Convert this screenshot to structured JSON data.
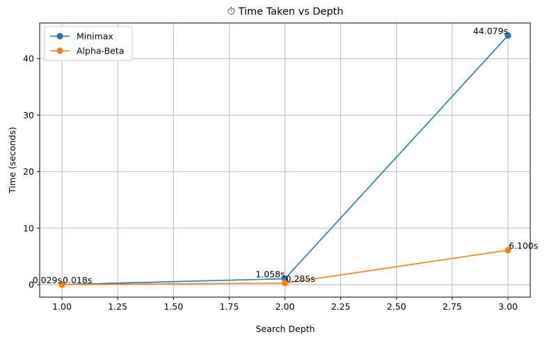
{
  "chart_data": {
    "type": "line",
    "title": "⏱ Time Taken vs Depth",
    "xlabel": "Search Depth",
    "ylabel": "Time (seconds)",
    "xlim": [
      0.9,
      3.1
    ],
    "ylim": [
      -2.2,
      46.3
    ],
    "x_ticks": [
      1.0,
      1.25,
      1.5,
      1.75,
      2.0,
      2.25,
      2.5,
      2.75,
      3.0
    ],
    "x_tick_labels": [
      "1.00",
      "1.25",
      "1.50",
      "1.75",
      "2.00",
      "2.25",
      "2.50",
      "2.75",
      "3.00"
    ],
    "y_ticks": [
      0,
      10,
      20,
      30,
      40
    ],
    "y_tick_labels": [
      "0",
      "10",
      "20",
      "30",
      "40"
    ],
    "grid": true,
    "legend_position": "upper-left",
    "series": [
      {
        "name": "Minimax",
        "color": "#1f77b4",
        "x": [
          1,
          2,
          3
        ],
        "values": [
          0.029,
          1.058,
          44.079
        ],
        "labels": [
          "0.029s",
          "1.058s",
          "44.079s"
        ],
        "label_align": "right"
      },
      {
        "name": "Alpha-Beta",
        "color": "#ff7f0e",
        "x": [
          1,
          2,
          3
        ],
        "values": [
          0.018,
          0.285,
          6.1
        ],
        "labels": [
          "0.018s",
          "0.285s",
          "6.100s"
        ],
        "label_align": "left"
      }
    ]
  }
}
